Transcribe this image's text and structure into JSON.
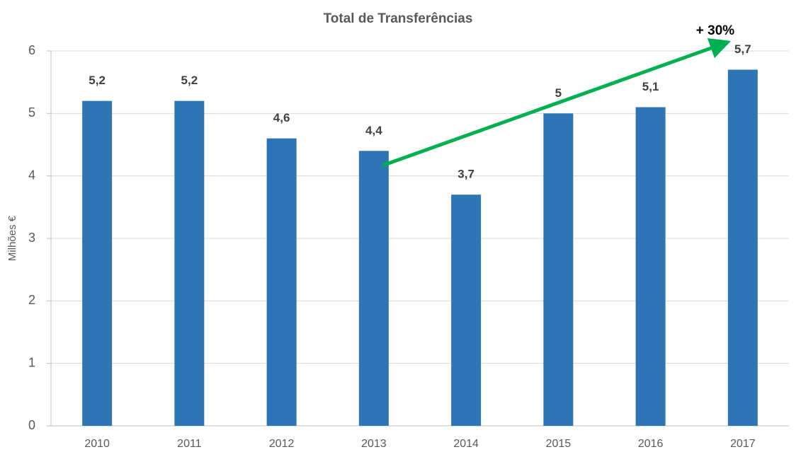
{
  "chart_data": {
    "type": "bar",
    "title": "Total de Transferências",
    "y_label": "Milhões €",
    "annotation": "+ 30%",
    "categories": [
      "2010",
      "2011",
      "2012",
      "2013",
      "2014",
      "2015",
      "2016",
      "2017"
    ],
    "values": [
      5.2,
      5.2,
      4.6,
      4.4,
      3.7,
      5,
      5.1,
      5.7
    ],
    "value_labels": [
      "5,2",
      "5,2",
      "4,6",
      "4,4",
      "3,7",
      "5",
      "5,1",
      "5,7"
    ],
    "color": "#2e75b6",
    "ylim": [
      0,
      6
    ],
    "yticks": [
      0,
      1,
      2,
      3,
      4,
      5,
      6
    ],
    "grid": true
  }
}
